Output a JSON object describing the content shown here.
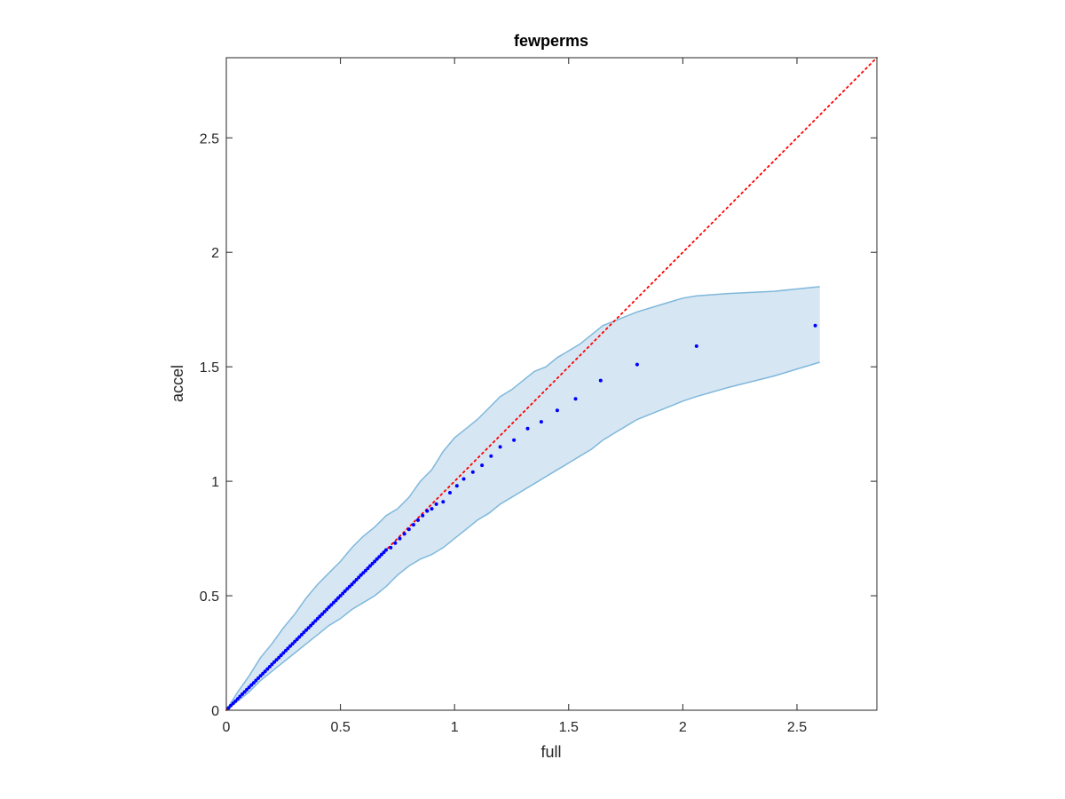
{
  "chart_data": {
    "type": "scatter",
    "title": "fewperms",
    "xlabel": "full",
    "ylabel": "accel",
    "xlim": [
      0,
      2.85
    ],
    "ylim": [
      0,
      2.85
    ],
    "x_ticks": [
      0,
      0.5,
      1,
      1.5,
      2,
      2.5
    ],
    "y_ticks": [
      0,
      0.5,
      1,
      1.5,
      2,
      2.5
    ],
    "x_tick_labels": [
      "0",
      "0.5",
      "1",
      "1.5",
      "2",
      "2.5"
    ],
    "y_tick_labels": [
      "0",
      "0.5",
      "1",
      "1.5",
      "2",
      "2.5"
    ],
    "grid": false,
    "box": true,
    "colors": {
      "points": "#0000ff",
      "reference_line": "#ff0000",
      "band_fill": "#d6e6f2",
      "band_edge": "#7fb8dc",
      "axes": "#262626"
    },
    "reference_line": {
      "style": "dotted",
      "x": [
        0,
        2.85
      ],
      "y": [
        0,
        2.85
      ]
    },
    "band": {
      "x": [
        0,
        0.05,
        0.1,
        0.15,
        0.2,
        0.25,
        0.3,
        0.35,
        0.4,
        0.45,
        0.5,
        0.55,
        0.6,
        0.65,
        0.7,
        0.75,
        0.8,
        0.85,
        0.9,
        0.95,
        1.0,
        1.05,
        1.1,
        1.15,
        1.2,
        1.25,
        1.3,
        1.35,
        1.4,
        1.45,
        1.5,
        1.55,
        1.6,
        1.65,
        1.7,
        1.75,
        1.8,
        1.9,
        2.0,
        2.06,
        2.2,
        2.4,
        2.6
      ],
      "upper": [
        0,
        0.08,
        0.15,
        0.23,
        0.29,
        0.36,
        0.42,
        0.49,
        0.55,
        0.6,
        0.65,
        0.71,
        0.76,
        0.8,
        0.85,
        0.88,
        0.93,
        1.0,
        1.05,
        1.13,
        1.19,
        1.23,
        1.27,
        1.32,
        1.37,
        1.4,
        1.44,
        1.48,
        1.5,
        1.54,
        1.57,
        1.6,
        1.64,
        1.68,
        1.7,
        1.72,
        1.74,
        1.77,
        1.8,
        1.81,
        1.82,
        1.83,
        1.85
      ],
      "lower": [
        0,
        0.04,
        0.08,
        0.13,
        0.17,
        0.21,
        0.25,
        0.29,
        0.33,
        0.37,
        0.4,
        0.44,
        0.47,
        0.5,
        0.54,
        0.59,
        0.63,
        0.66,
        0.68,
        0.71,
        0.75,
        0.79,
        0.83,
        0.86,
        0.9,
        0.93,
        0.96,
        0.99,
        1.02,
        1.05,
        1.08,
        1.11,
        1.14,
        1.18,
        1.21,
        1.24,
        1.27,
        1.31,
        1.35,
        1.37,
        1.41,
        1.46,
        1.52
      ]
    },
    "points": {
      "x": [
        0.01,
        0.02,
        0.03,
        0.04,
        0.05,
        0.06,
        0.07,
        0.08,
        0.09,
        0.1,
        0.11,
        0.12,
        0.13,
        0.14,
        0.15,
        0.16,
        0.17,
        0.18,
        0.19,
        0.2,
        0.21,
        0.22,
        0.23,
        0.24,
        0.25,
        0.26,
        0.27,
        0.28,
        0.29,
        0.3,
        0.31,
        0.32,
        0.33,
        0.34,
        0.35,
        0.36,
        0.37,
        0.38,
        0.39,
        0.4,
        0.41,
        0.42,
        0.43,
        0.44,
        0.45,
        0.46,
        0.47,
        0.48,
        0.49,
        0.5,
        0.51,
        0.52,
        0.53,
        0.54,
        0.55,
        0.56,
        0.57,
        0.58,
        0.59,
        0.6,
        0.61,
        0.62,
        0.63,
        0.64,
        0.65,
        0.66,
        0.67,
        0.68,
        0.69,
        0.7,
        0.72,
        0.74,
        0.76,
        0.78,
        0.8,
        0.82,
        0.84,
        0.86,
        0.88,
        0.9,
        0.92,
        0.95,
        0.98,
        1.01,
        1.04,
        1.08,
        1.12,
        1.16,
        1.2,
        1.26,
        1.32,
        1.38,
        1.45,
        1.53,
        1.64,
        1.8,
        2.06,
        2.58
      ],
      "y": [
        0.01,
        0.02,
        0.03,
        0.04,
        0.05,
        0.06,
        0.07,
        0.08,
        0.09,
        0.1,
        0.11,
        0.12,
        0.13,
        0.14,
        0.15,
        0.16,
        0.17,
        0.18,
        0.19,
        0.2,
        0.21,
        0.22,
        0.23,
        0.24,
        0.25,
        0.26,
        0.27,
        0.28,
        0.29,
        0.3,
        0.31,
        0.32,
        0.33,
        0.34,
        0.35,
        0.36,
        0.37,
        0.38,
        0.39,
        0.4,
        0.41,
        0.42,
        0.43,
        0.44,
        0.45,
        0.46,
        0.47,
        0.48,
        0.49,
        0.5,
        0.51,
        0.52,
        0.53,
        0.54,
        0.55,
        0.56,
        0.57,
        0.58,
        0.59,
        0.6,
        0.61,
        0.62,
        0.63,
        0.64,
        0.65,
        0.66,
        0.67,
        0.68,
        0.69,
        0.7,
        0.71,
        0.73,
        0.75,
        0.77,
        0.79,
        0.81,
        0.83,
        0.85,
        0.87,
        0.88,
        0.9,
        0.91,
        0.95,
        0.98,
        1.01,
        1.04,
        1.07,
        1.11,
        1.15,
        1.18,
        1.23,
        1.26,
        1.31,
        1.36,
        1.44,
        1.51,
        1.59,
        1.68
      ]
    }
  }
}
